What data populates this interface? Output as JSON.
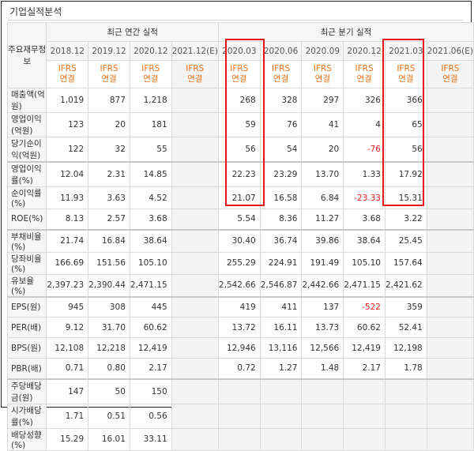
{
  "section_title": "기업실적분석",
  "header": {
    "row_label": "주요재무정보",
    "annual_group": "최근 연간 실적",
    "quarter_group": "최근 분기 실적"
  },
  "periods": [
    "2018.12",
    "2019.12",
    "2020.12",
    "2021.12(E)",
    "2020.03",
    "2020.06",
    "2020.09",
    "2020.12",
    "2021.03",
    "2021.06(E)"
  ],
  "ifrs": {
    "top": "IFRS",
    "bottom": "연결"
  },
  "rows": [
    {
      "label": "매출액(억원)",
      "values": [
        "1,019",
        "877",
        "1,218",
        "",
        "268",
        "328",
        "297",
        "326",
        "366",
        ""
      ]
    },
    {
      "label": "영업이익(억원)",
      "values": [
        "123",
        "20",
        "181",
        "",
        "59",
        "76",
        "41",
        "4",
        "65",
        ""
      ]
    },
    {
      "label": "당기순이익(억원)",
      "values": [
        "122",
        "32",
        "55",
        "",
        "56",
        "54",
        "20",
        "-76",
        "56",
        ""
      ]
    },
    {
      "label": "영업이익률(%)",
      "values": [
        "12.04",
        "2.31",
        "14.85",
        "",
        "22.23",
        "23.29",
        "13.70",
        "1.33",
        "17.92",
        ""
      ]
    },
    {
      "label": "순이익률(%)",
      "values": [
        "11.93",
        "3.63",
        "4.52",
        "",
        "21.07",
        "16.58",
        "6.84",
        "-23.33",
        "15.31",
        ""
      ]
    },
    {
      "label": "ROE(%)",
      "values": [
        "8.13",
        "2.57",
        "3.68",
        "",
        "5.54",
        "8.36",
        "11.27",
        "3.68",
        "3.22",
        ""
      ]
    },
    {
      "label": "부채비율(%)",
      "values": [
        "21.74",
        "16.84",
        "38.64",
        "",
        "30.40",
        "36.74",
        "39.86",
        "38.64",
        "25.45",
        ""
      ]
    },
    {
      "label": "당좌비율(%)",
      "values": [
        "166.69",
        "151.56",
        "105.10",
        "",
        "255.29",
        "224.91",
        "191.49",
        "105.10",
        "157.64",
        ""
      ]
    },
    {
      "label": "유보율(%)",
      "values": [
        "2,397.23",
        "2,390.44",
        "2,471.15",
        "",
        "2,542.66",
        "2,546.87",
        "2,442.66",
        "2,471.15",
        "2,421.62",
        ""
      ]
    },
    {
      "label": "EPS(원)",
      "values": [
        "945",
        "308",
        "445",
        "",
        "419",
        "411",
        "137",
        "-522",
        "359",
        ""
      ]
    },
    {
      "label": "PER(배)",
      "values": [
        "9.12",
        "31.70",
        "60.62",
        "",
        "13.72",
        "16.11",
        "13.73",
        "60.62",
        "52.41",
        ""
      ]
    },
    {
      "label": "BPS(원)",
      "values": [
        "12,108",
        "12,218",
        "12,419",
        "",
        "12,946",
        "13,116",
        "12,566",
        "12,419",
        "12,198",
        ""
      ]
    },
    {
      "label": "PBR(배)",
      "values": [
        "0.71",
        "0.80",
        "2.17",
        "",
        "0.72",
        "1.27",
        "1.48",
        "2.17",
        "1.78",
        ""
      ]
    },
    {
      "label": "주당배당금(원)",
      "values": [
        "147",
        "50",
        "150",
        "",
        "",
        "",
        "",
        "",
        "",
        ""
      ]
    },
    {
      "label": "시가배당률(%)",
      "values": [
        "1.71",
        "0.51",
        "0.56",
        "",
        "",
        "",
        "",
        "",
        "",
        ""
      ]
    },
    {
      "label": "배당성향(%)",
      "values": [
        "15.29",
        "16.01",
        "33.11",
        "",
        "",
        "",
        "",
        "",
        "",
        ""
      ]
    }
  ]
}
